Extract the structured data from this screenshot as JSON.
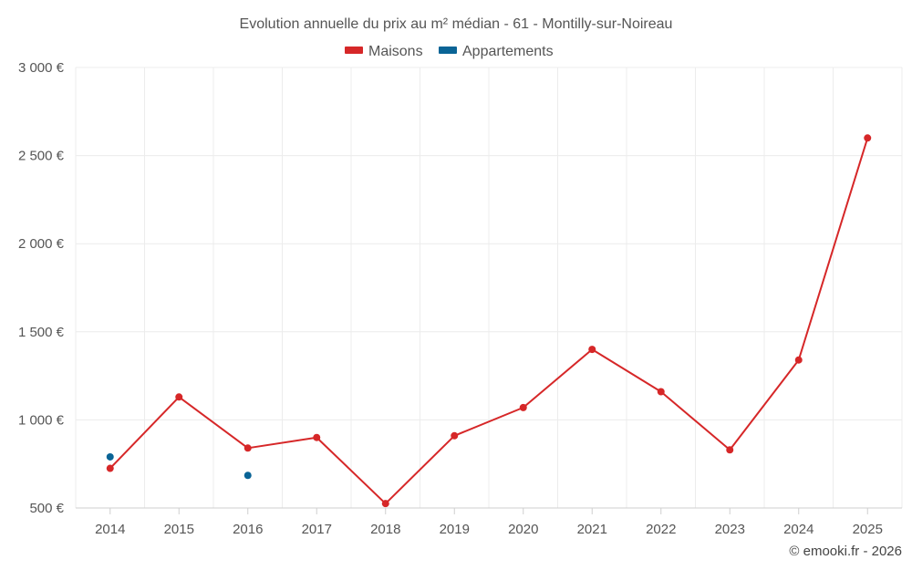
{
  "chart_data": {
    "type": "line",
    "title": "Evolution annuelle du prix au m² médian - 61 - Montilly-sur-Noireau",
    "categories": [
      "2014",
      "2015",
      "2016",
      "2017",
      "2018",
      "2019",
      "2020",
      "2021",
      "2022",
      "2023",
      "2024",
      "2025"
    ],
    "ylim": [
      500,
      3000
    ],
    "yticks": [
      500,
      1000,
      1500,
      2000,
      2500,
      3000
    ],
    "ytick_labels": [
      "500 €",
      "1 000 €",
      "1 500 €",
      "2 000 €",
      "2 500 €",
      "3 000 €"
    ],
    "grid": true,
    "legend_position": "top-center",
    "series": [
      {
        "name": "Maisons",
        "color": "#d62728",
        "values": [
          725,
          1130,
          840,
          900,
          525,
          910,
          1070,
          1400,
          1160,
          830,
          1340,
          2600
        ]
      },
      {
        "name": "Appartements",
        "color": "#0a6496",
        "values": [
          790,
          null,
          685,
          null,
          null,
          null,
          null,
          null,
          null,
          null,
          null,
          null
        ]
      }
    ]
  },
  "credit": "© emooki.fr - 2026"
}
